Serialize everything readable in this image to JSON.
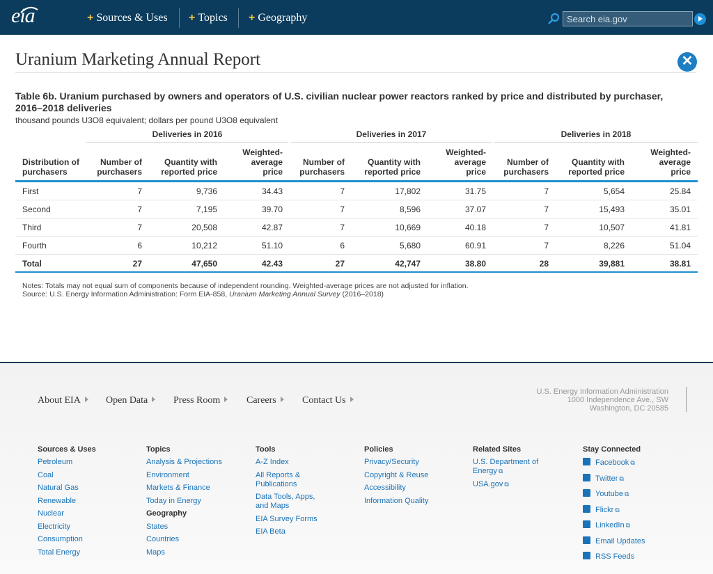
{
  "header": {
    "logo": "eia",
    "nav": [
      "Sources & Uses",
      "Topics",
      "Geography"
    ],
    "search_placeholder": "Search eia.gov"
  },
  "page": {
    "title": "Uranium Marketing Annual Report",
    "table_title": "Table 6b. Uranium purchased by owners and operators of U.S. civilian nuclear power reactors ranked by price and distributed by purchaser, 2016–2018 deliveries",
    "units": "thousand pounds U3O8 equivalent; dollars per pound U3O8 equivalent"
  },
  "table": {
    "groups": [
      "Deliveries in 2016",
      "Deliveries in 2017",
      "Deliveries in 2018"
    ],
    "first_col_header": [
      "Distribution of",
      "purchasers"
    ],
    "col_headers": [
      [
        "Number of",
        "purchasers"
      ],
      [
        "Quantity with",
        "reported price"
      ],
      [
        "Weighted-",
        "average",
        "price"
      ]
    ],
    "rows": [
      [
        "First",
        "7",
        "9,736",
        "34.43",
        "7",
        "17,802",
        "31.75",
        "7",
        "5,654",
        "25.84"
      ],
      [
        "Second",
        "7",
        "7,195",
        "39.70",
        "7",
        "8,596",
        "37.07",
        "7",
        "15,493",
        "35.01"
      ],
      [
        "Third",
        "7",
        "20,508",
        "42.87",
        "7",
        "10,669",
        "40.18",
        "7",
        "10,507",
        "41.81"
      ],
      [
        "Fourth",
        "6",
        "10,212",
        "51.10",
        "6",
        "5,680",
        "60.91",
        "7",
        "8,226",
        "51.04"
      ]
    ],
    "total": [
      "Total",
      "27",
      "47,650",
      "42.43",
      "27",
      "42,747",
      "38.80",
      "28",
      "39,881",
      "38.81"
    ]
  },
  "notes": {
    "line1": "Notes: Totals may not equal sum of components because of independent rounding. Weighted-average prices are not adjusted for inflation.",
    "source_prefix": "Source: U.S. Energy Information Administration: Form EIA-858, ",
    "source_italic": "Uranium Marketing Annual Survey",
    "source_suffix": " (2016–2018)"
  },
  "footer": {
    "nav": [
      "About EIA",
      "Open Data",
      "Press Room",
      "Careers",
      "Contact Us"
    ],
    "address": [
      "U.S. Energy Information Administration",
      "1000 Independence Ave., SW",
      "Washington, DC 20585"
    ],
    "columns": {
      "sources": {
        "heading": "Sources & Uses",
        "links": [
          "Petroleum",
          "Coal",
          "Natural Gas",
          "Renewable",
          "Nuclear",
          "Electricity",
          "Consumption",
          "Total Energy"
        ]
      },
      "topics": {
        "heading": "Topics",
        "links": [
          "Analysis & Projections",
          "Environment",
          "Markets & Finance",
          "Today in Energy"
        ],
        "subheading": "Geography",
        "sublinks": [
          "States",
          "Countries",
          "Maps"
        ]
      },
      "tools": {
        "heading": "Tools",
        "links": [
          "A-Z Index",
          "All Reports & Publications",
          "Data Tools, Apps, and Maps",
          "EIA Survey Forms",
          "EIA Beta"
        ]
      },
      "policies": {
        "heading": "Policies",
        "links": [
          "Privacy/Security",
          "Copyright & Reuse",
          "Accessibility",
          "Information Quality"
        ]
      },
      "related": {
        "heading": "Related Sites",
        "links": [
          "U.S. Department of Energy",
          "USA.gov"
        ]
      },
      "social": {
        "heading": "Stay Connected",
        "links": [
          "Facebook",
          "Twitter",
          "Youtube",
          "Flickr",
          "LinkedIn",
          "Email Updates",
          "RSS Feeds"
        ]
      }
    }
  }
}
